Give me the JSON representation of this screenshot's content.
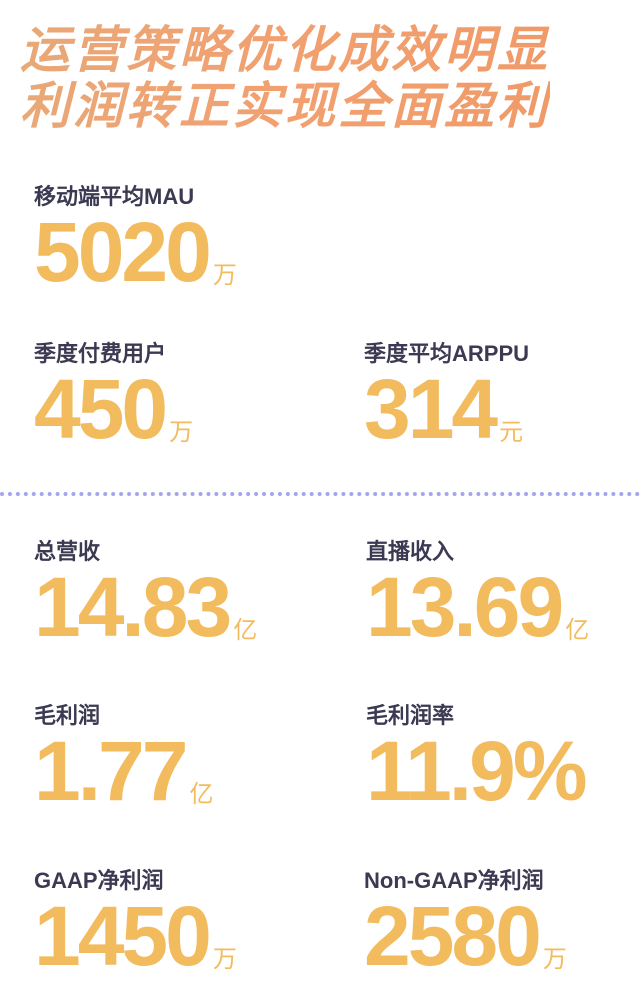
{
  "header": {
    "line1": "运营策略优化成效明显",
    "line2": "利润转正实现全面盈利"
  },
  "stats": [
    {
      "label": "移动端平均MAU",
      "value": "5020",
      "unit": "万"
    },
    {
      "label": "季度付费用户",
      "value": "450",
      "unit": "万"
    },
    {
      "label": "季度平均ARPPU",
      "value": "314",
      "unit": "元"
    },
    {
      "label": "总营收",
      "value": "14.83",
      "unit": "亿"
    },
    {
      "label": "直播收入",
      "value": "13.69",
      "unit": "亿"
    },
    {
      "label": "毛利润",
      "value": "1.77",
      "unit": "亿"
    },
    {
      "label": "毛利润率",
      "value": "11.9%",
      "unit": ""
    },
    {
      "label": "GAAP净利润",
      "value": "1450",
      "unit": "万"
    },
    {
      "label": "Non-GAAP净利润",
      "value": "2580",
      "unit": "万"
    }
  ],
  "colors": {
    "title": "#f2a070",
    "label": "#3b3a52",
    "value": "#f2bc5e",
    "divider": "#a4a4ec"
  }
}
